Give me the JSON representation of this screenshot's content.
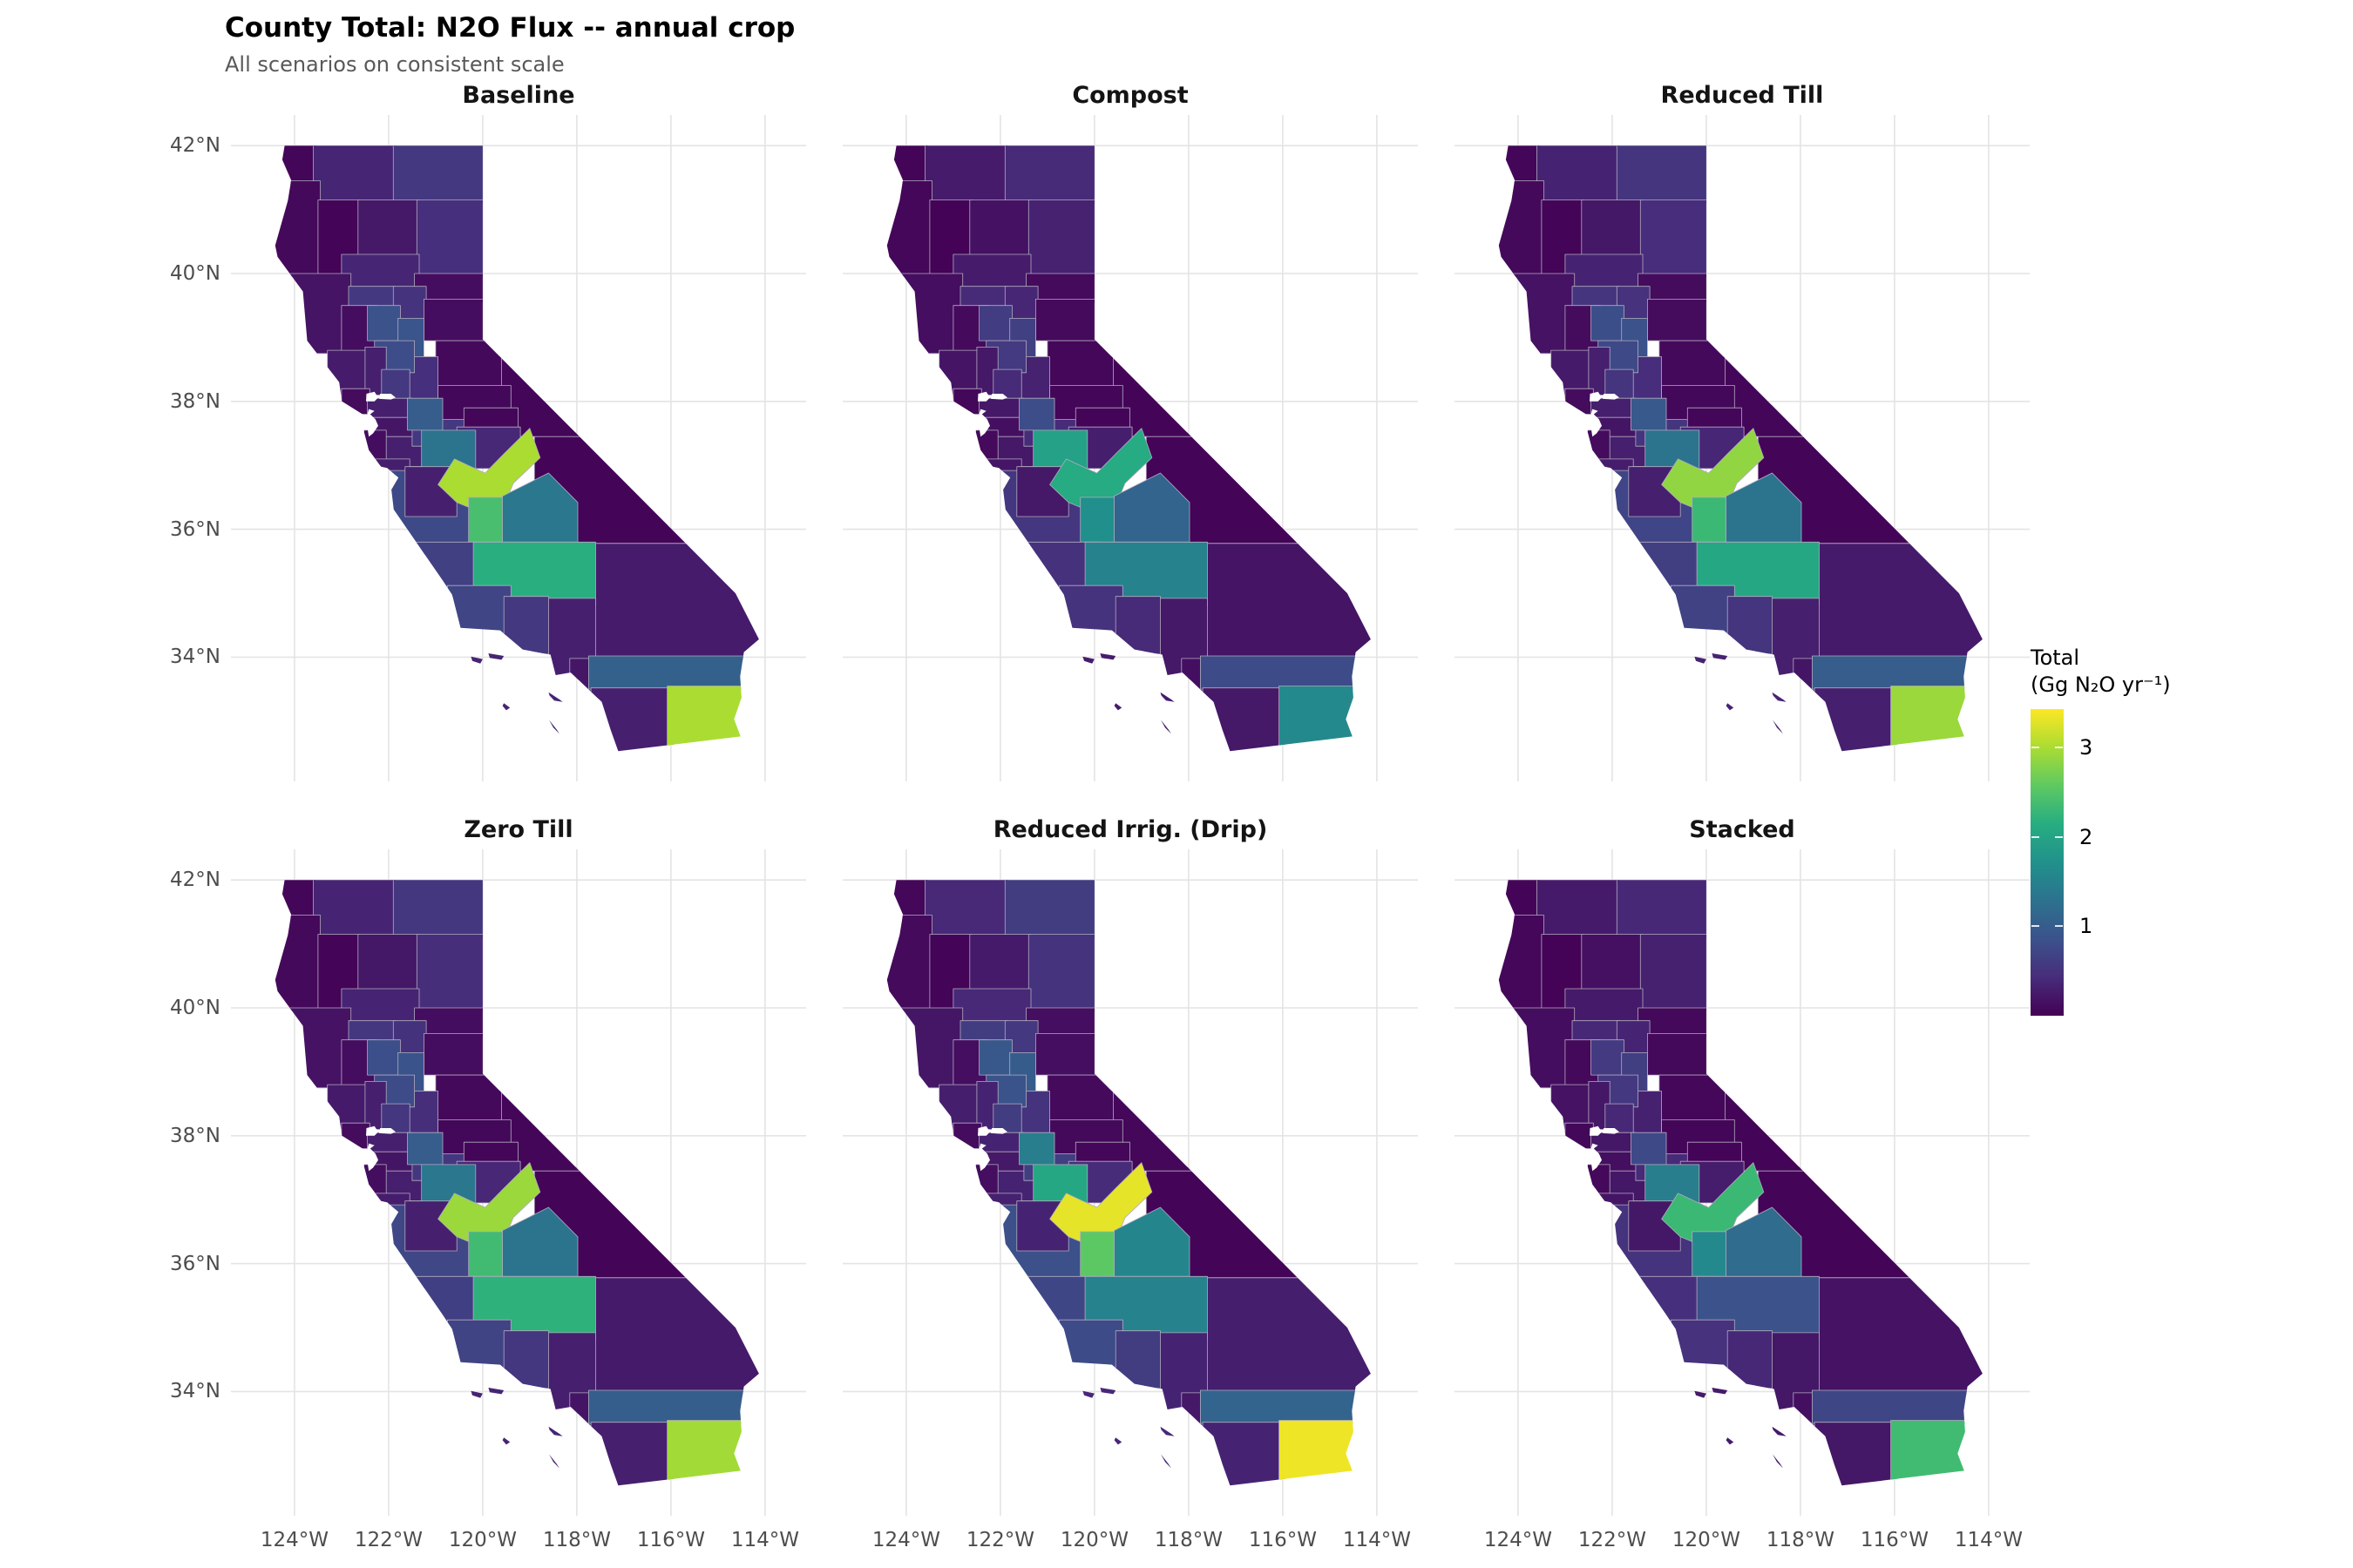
{
  "header": {
    "title": "County Total: N2O Flux -- annual crop",
    "subtitle": "All scenarios on consistent scale"
  },
  "axes": {
    "x_tick_labels": [
      "124°W",
      "122°W",
      "120°W",
      "118°W",
      "116°W",
      "114°W"
    ],
    "x_values": [
      -124,
      -122,
      -120,
      -118,
      -116,
      -114
    ],
    "y_tick_labels": [
      "42°N",
      "40°N",
      "38°N",
      "36°N",
      "34°N"
    ],
    "y_values": [
      42,
      40,
      38,
      36,
      34
    ]
  },
  "legend": {
    "title_line1": "Total",
    "title_line2": "(Gg N₂O yr⁻¹)",
    "tick_labels": [
      "3",
      "2",
      "1"
    ],
    "tick_values": [
      3,
      2,
      1
    ]
  },
  "chart_data": {
    "type": "choropleth",
    "geography": "California counties",
    "unit": "Gg N2O yr-1",
    "title": "County Total: N2O Flux -- annual crop",
    "subtitle": "All scenarios on consistent scale",
    "scale": {
      "limits": [
        0,
        3.42
      ],
      "palette": "viridis",
      "legend_ticks": [
        1,
        2,
        3
      ]
    },
    "scenarios": [
      "Baseline",
      "Compost",
      "Reduced Till",
      "Zero Till",
      "Reduced Irrig. (Drip)",
      "Stacked"
    ],
    "county_values": {
      "Del Norte": [
        0.05,
        0.04,
        0.05,
        0.05,
        0.06,
        0.04
      ],
      "Siskiyou": [
        0.35,
        0.25,
        0.33,
        0.34,
        0.39,
        0.24
      ],
      "Modoc": [
        0.55,
        0.4,
        0.52,
        0.53,
        0.6,
        0.38
      ],
      "Humboldt": [
        0.08,
        0.06,
        0.08,
        0.08,
        0.09,
        0.06
      ],
      "Trinity": [
        0.03,
        0.02,
        0.03,
        0.03,
        0.03,
        0.02
      ],
      "Shasta": [
        0.22,
        0.16,
        0.21,
        0.21,
        0.24,
        0.15
      ],
      "Lassen": [
        0.45,
        0.32,
        0.43,
        0.44,
        0.5,
        0.31
      ],
      "Tehama": [
        0.35,
        0.25,
        0.33,
        0.34,
        0.39,
        0.24
      ],
      "Plumas": [
        0.12,
        0.09,
        0.11,
        0.12,
        0.13,
        0.08
      ],
      "Mendocino": [
        0.18,
        0.13,
        0.17,
        0.17,
        0.2,
        0.12
      ],
      "Glenn": [
        0.55,
        0.4,
        0.52,
        0.53,
        0.6,
        0.38
      ],
      "Butte": [
        0.5,
        0.36,
        0.48,
        0.49,
        0.55,
        0.34
      ],
      "Yuba-Sierra": [
        0.12,
        0.09,
        0.11,
        0.12,
        0.13,
        0.08
      ],
      "Lake": [
        0.12,
        0.09,
        0.11,
        0.12,
        0.13,
        0.08
      ],
      "Colusa": [
        0.85,
        0.61,
        0.81,
        0.82,
        0.94,
        0.58
      ],
      "Sutter": [
        0.9,
        0.65,
        0.86,
        0.87,
        0.99,
        0.62
      ],
      "Yolo": [
        0.8,
        0.58,
        0.76,
        0.78,
        0.88,
        0.55
      ],
      "Sacramento": [
        0.45,
        0.32,
        0.43,
        0.44,
        0.5,
        0.31
      ],
      "El Dorado-Alpine": [
        0.08,
        0.06,
        0.08,
        0.08,
        0.09,
        0.06
      ],
      "Sonoma": [
        0.25,
        0.18,
        0.24,
        0.24,
        0.28,
        0.17
      ],
      "Napa": [
        0.3,
        0.22,
        0.29,
        0.29,
        0.33,
        0.21
      ],
      "Marin": [
        0.1,
        0.07,
        0.1,
        0.1,
        0.11,
        0.07
      ],
      "Solano": [
        0.55,
        0.4,
        0.52,
        0.53,
        0.6,
        0.38
      ],
      "Contra Costa": [
        0.3,
        0.22,
        0.29,
        0.29,
        0.33,
        0.21
      ],
      "Alameda": [
        0.2,
        0.14,
        0.19,
        0.19,
        0.22,
        0.14
      ],
      "San Mateo": [
        0.12,
        0.09,
        0.11,
        0.12,
        0.13,
        0.08
      ],
      "Santa Clara": [
        0.3,
        0.22,
        0.29,
        0.29,
        0.33,
        0.21
      ],
      "Santa Cruz": [
        0.28,
        0.2,
        0.27,
        0.27,
        0.31,
        0.19
      ],
      "San Joaquin": [
        1.0,
        0.8,
        0.95,
        1.0,
        1.45,
        0.75
      ],
      "Calaveras-Tuolumne": [
        0.07,
        0.05,
        0.07,
        0.07,
        0.08,
        0.05
      ],
      "Stanislaus": [
        0.55,
        0.42,
        0.52,
        0.54,
        0.62,
        0.4
      ],
      "Mariposa": [
        0.05,
        0.04,
        0.05,
        0.05,
        0.06,
        0.03
      ],
      "Madera": [
        0.38,
        0.28,
        0.36,
        0.37,
        0.42,
        0.26
      ],
      "Merced": [
        1.3,
        1.95,
        1.3,
        1.35,
        2.05,
        1.45
      ],
      "Monterey": [
        0.75,
        0.54,
        0.71,
        0.73,
        0.83,
        0.5
      ],
      "San Benito": [
        0.3,
        0.22,
        0.29,
        0.29,
        0.33,
        0.21
      ],
      "Fresno": [
        3.0,
        2.1,
        2.85,
        2.9,
        3.3,
        2.3
      ],
      "Kings": [
        2.4,
        1.7,
        2.3,
        2.35,
        2.55,
        1.6
      ],
      "Tulare": [
        1.35,
        1.1,
        1.3,
        1.3,
        1.55,
        1.2
      ],
      "Kern": [
        2.15,
        1.5,
        2.05,
        2.2,
        1.5,
        0.85
      ],
      "Inyo": [
        0.04,
        0.03,
        0.04,
        0.04,
        0.04,
        0.03
      ],
      "Mono": [
        0.05,
        0.04,
        0.05,
        0.05,
        0.06,
        0.03
      ],
      "San Luis Obispo": [
        0.65,
        0.47,
        0.62,
        0.63,
        0.72,
        0.45
      ],
      "Santa Barbara": [
        0.7,
        0.5,
        0.67,
        0.68,
        0.77,
        0.48
      ],
      "Ventura": [
        0.55,
        0.4,
        0.52,
        0.53,
        0.6,
        0.38
      ],
      "Los Angeles": [
        0.3,
        0.22,
        0.29,
        0.29,
        0.33,
        0.21
      ],
      "San Bernardino": [
        0.25,
        0.18,
        0.24,
        0.24,
        0.28,
        0.17
      ],
      "Orange": [
        0.2,
        0.14,
        0.19,
        0.19,
        0.22,
        0.14
      ],
      "Riverside": [
        1.05,
        0.78,
        1.0,
        1.02,
        1.1,
        0.72
      ],
      "San Diego": [
        0.3,
        0.22,
        0.29,
        0.29,
        0.33,
        0.21
      ],
      "Imperial": [
        3.0,
        1.6,
        2.9,
        2.95,
        3.35,
        2.35
      ],
      "Channel Islands": [
        0.35,
        0.26,
        0.33,
        0.34,
        0.38,
        0.23
      ]
    }
  }
}
